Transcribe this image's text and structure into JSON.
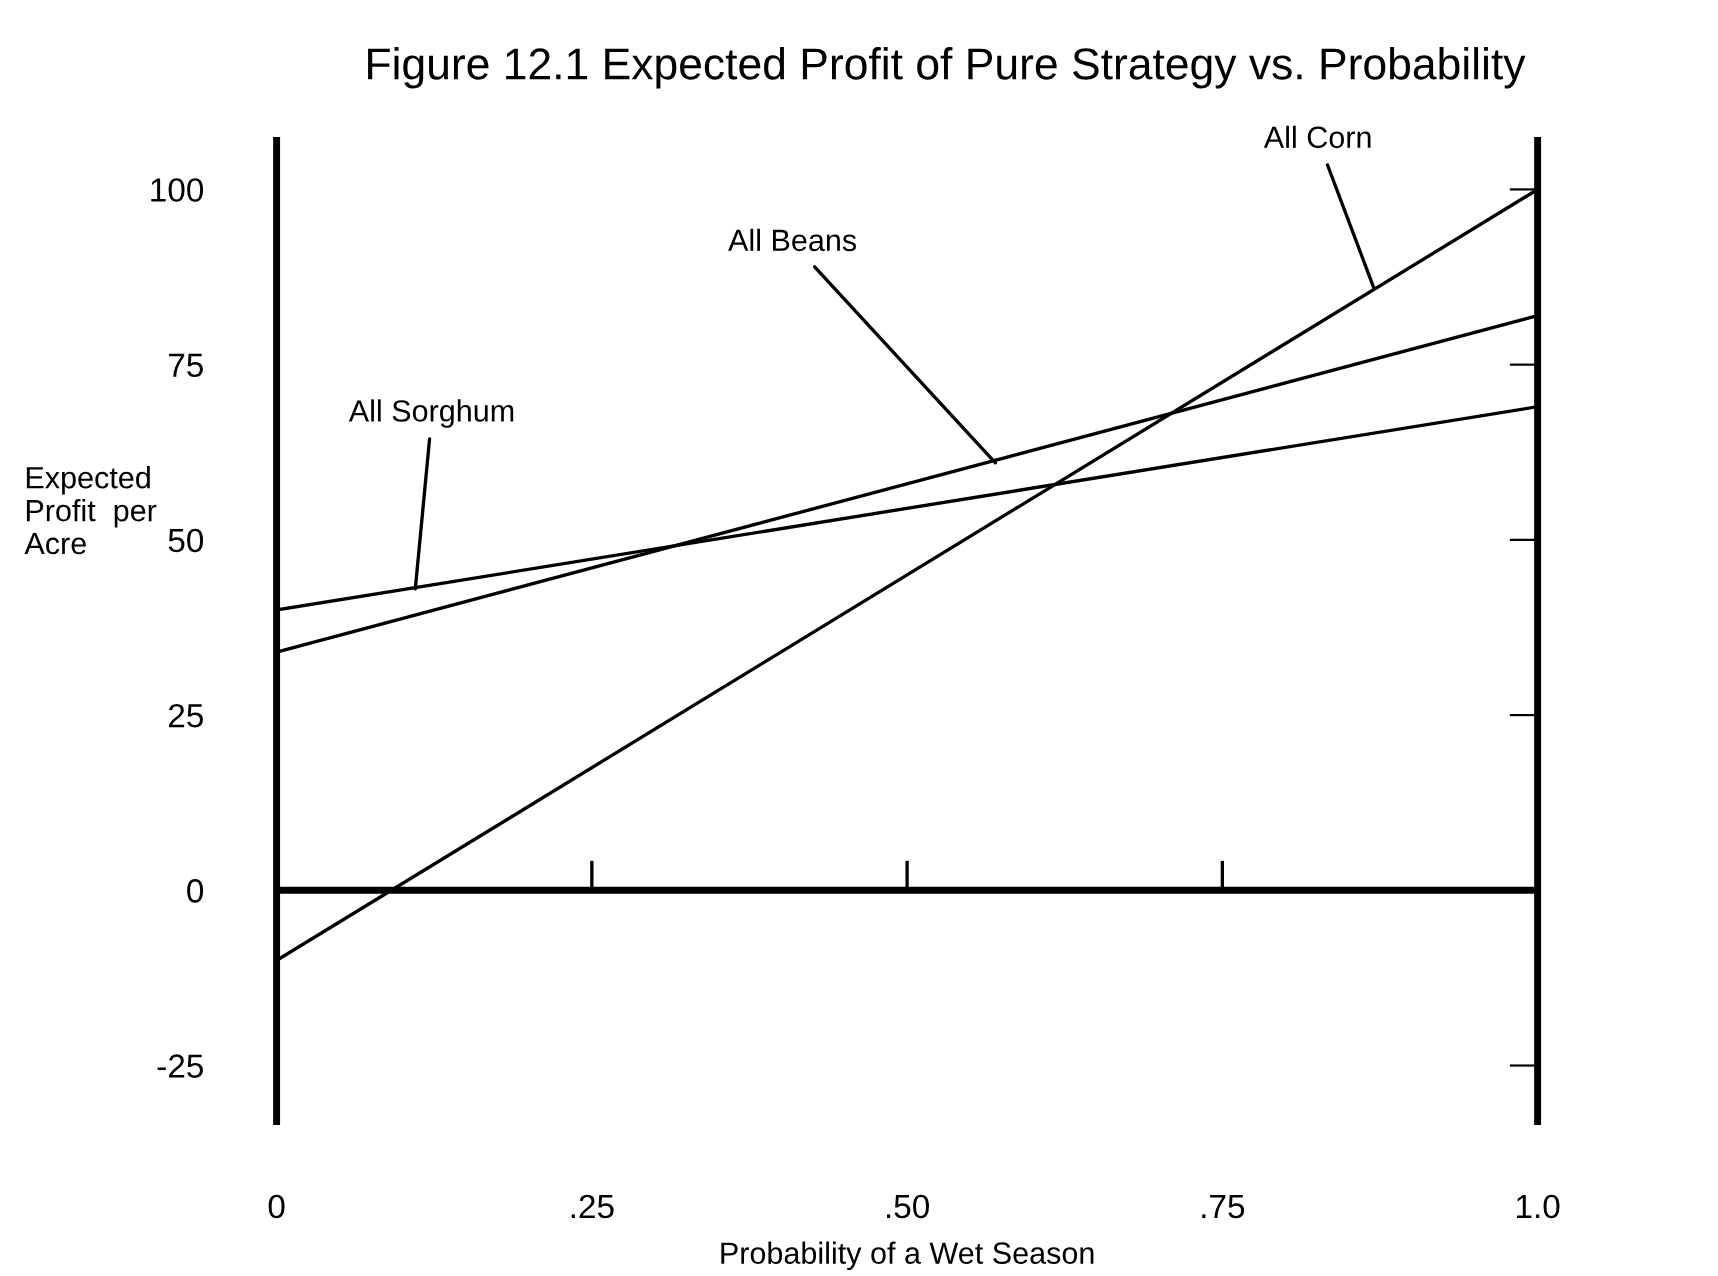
{
  "chart_data": {
    "type": "line",
    "title": "Figure 12.1 Expected Profit of Pure Strategy vs. Probability",
    "xlabel": "Probability of a Wet Season",
    "ylabel": "Expected\nProfit  per\nAcre",
    "xlim": [
      0,
      1
    ],
    "ylim": [
      -33,
      107
    ],
    "xticks": [
      0,
      {
        "value": 0.25,
        "label": ".25"
      },
      {
        "value": 0.5,
        "label": ".50"
      },
      {
        "value": 0.75,
        "label": ".75"
      },
      {
        "value": 1,
        "label": "1.0"
      }
    ],
    "yticks": [
      -25,
      0,
      25,
      50,
      75,
      100
    ],
    "x": [
      0,
      1
    ],
    "series": [
      {
        "color": "#000000",
        "values": [
          -10,
          100
        ]
      },
      {
        "color": "#000000",
        "values": [
          34,
          82
        ]
      },
      {
        "color": "#000000",
        "values": [
          40,
          69
        ]
      }
    ],
    "ref_lines": [
      {
        "axis": "y",
        "value": 0,
        "label": null,
        "color": "#000000"
      }
    ],
    "annotations": [
      {
        "text": "All Corn",
        "x": 0.87,
        "y": 86
      },
      {
        "text": "All Beans",
        "x": 0.57,
        "y": 61
      },
      {
        "text": "All Sorghum",
        "x": 0.11,
        "y": 43
      }
    ],
    "grid": false,
    "legend": false,
    "marker": "none",
    "line_style": "solid"
  }
}
